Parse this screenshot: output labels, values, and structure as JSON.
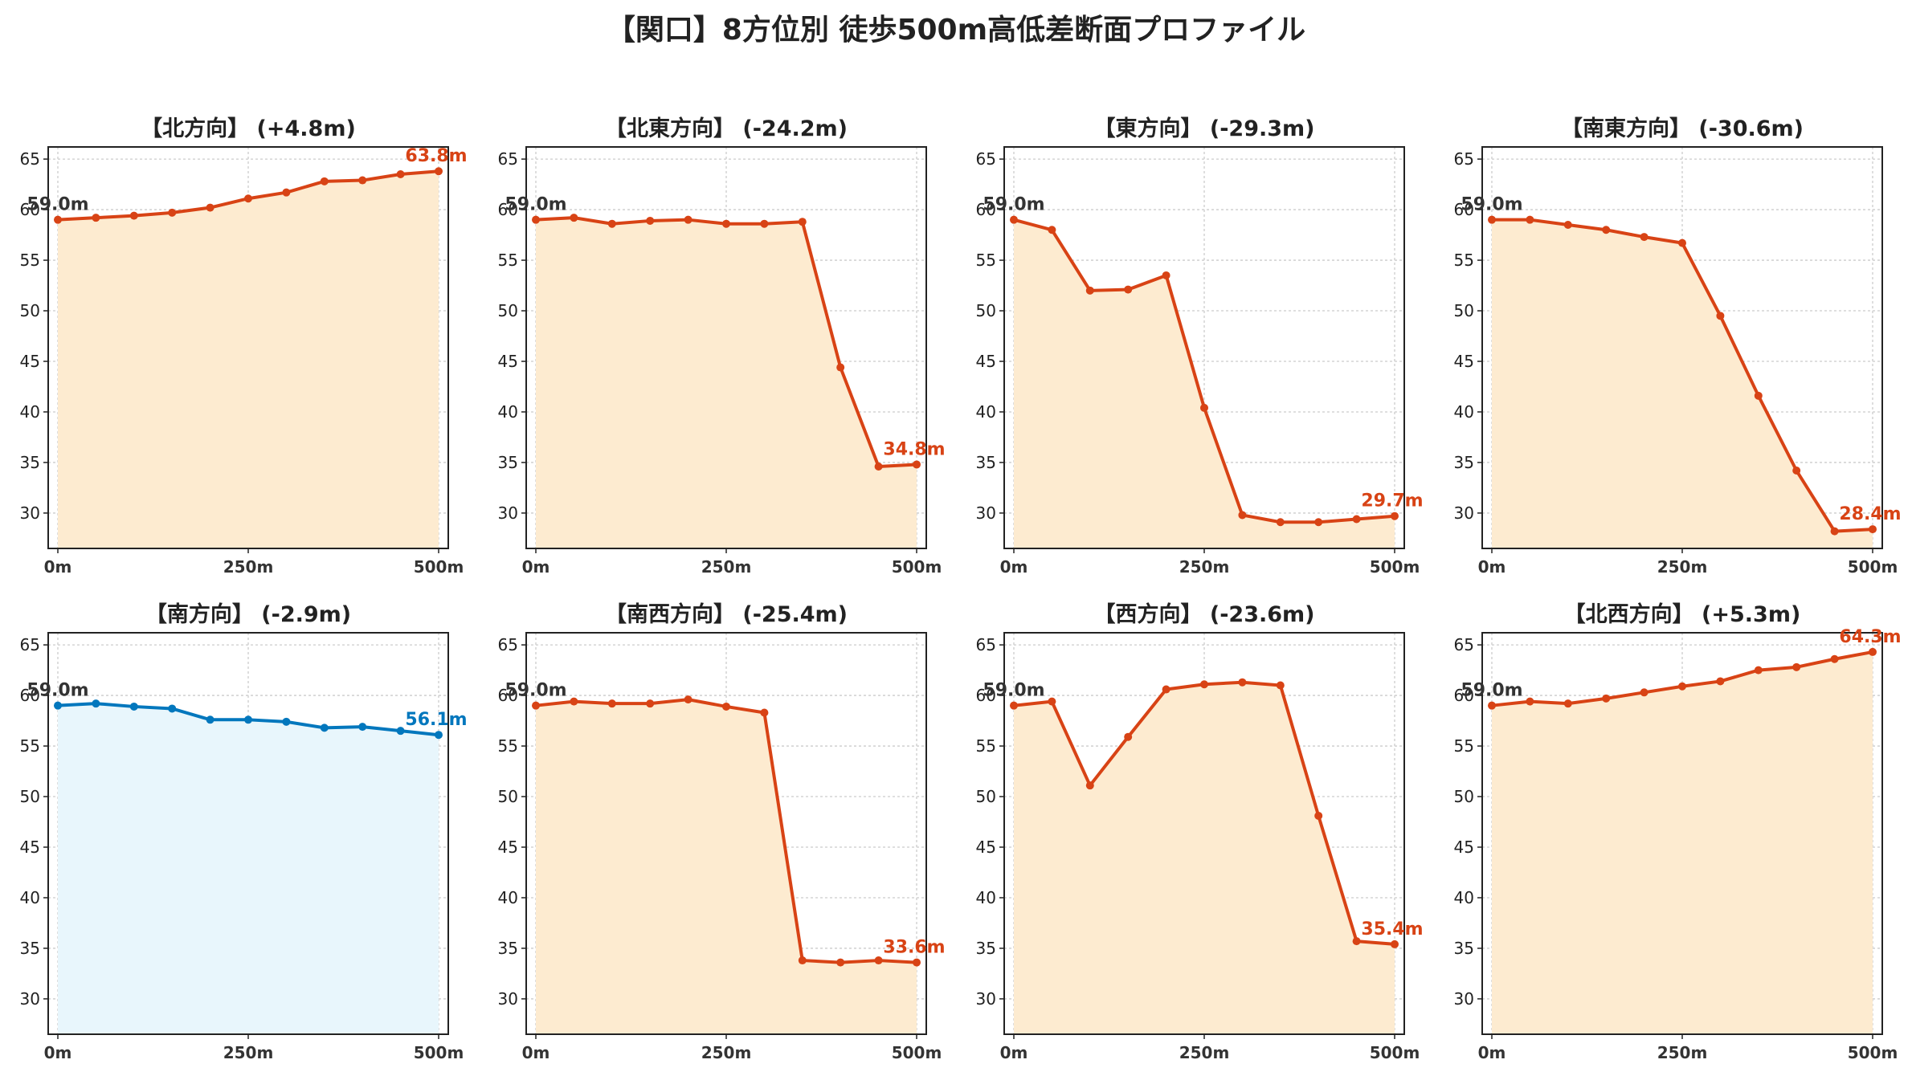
{
  "title": "【関口】8方位別 徒歩500m高低差断面プロファイル",
  "colors": {
    "down_line": "#d84315",
    "down_fill": "#fdebd0",
    "up_line": "#0277bd",
    "up_fill": "#e8f6fc",
    "grid": "#cccccc",
    "start_label": "#333333"
  },
  "chart_data": [
    {
      "type": "area",
      "title": "【北方向】 (+4.8m)",
      "xlabel": "",
      "ylabel": "",
      "x": [
        0,
        50,
        100,
        150,
        200,
        250,
        300,
        350,
        400,
        450,
        500
      ],
      "x_ticks": [
        {
          "value": 0,
          "label": "0m"
        },
        {
          "value": 250,
          "label": "250m"
        },
        {
          "value": 500,
          "label": "500m"
        }
      ],
      "y_ticks": [
        30,
        35,
        40,
        45,
        50,
        55,
        60,
        65
      ],
      "ylim": [
        26.5,
        66.2
      ],
      "values": [
        59.0,
        59.2,
        59.4,
        59.7,
        60.2,
        61.1,
        61.7,
        62.8,
        62.9,
        63.5,
        63.8
      ],
      "start_label": "59.0m",
      "end_label": "63.8m",
      "color_scheme": "orange",
      "grid": true
    },
    {
      "type": "area",
      "title": "【北東方向】 (-24.2m)",
      "xlabel": "",
      "ylabel": "",
      "x": [
        0,
        50,
        100,
        150,
        200,
        250,
        300,
        350,
        400,
        450,
        500
      ],
      "x_ticks": [
        {
          "value": 0,
          "label": "0m"
        },
        {
          "value": 250,
          "label": "250m"
        },
        {
          "value": 500,
          "label": "500m"
        }
      ],
      "y_ticks": [
        30,
        35,
        40,
        45,
        50,
        55,
        60,
        65
      ],
      "ylim": [
        26.5,
        66.2
      ],
      "values": [
        59.0,
        59.2,
        58.6,
        58.9,
        59.0,
        58.6,
        58.6,
        58.8,
        44.4,
        34.6,
        34.8
      ],
      "start_label": "59.0m",
      "end_label": "34.8m",
      "color_scheme": "orange",
      "grid": true
    },
    {
      "type": "area",
      "title": "【東方向】 (-29.3m)",
      "xlabel": "",
      "ylabel": "",
      "x": [
        0,
        50,
        100,
        150,
        200,
        250,
        300,
        350,
        400,
        450,
        500
      ],
      "x_ticks": [
        {
          "value": 0,
          "label": "0m"
        },
        {
          "value": 250,
          "label": "250m"
        },
        {
          "value": 500,
          "label": "500m"
        }
      ],
      "y_ticks": [
        30,
        35,
        40,
        45,
        50,
        55,
        60,
        65
      ],
      "ylim": [
        26.5,
        66.2
      ],
      "values": [
        59.0,
        58.0,
        52.0,
        52.1,
        53.5,
        40.4,
        29.8,
        29.1,
        29.1,
        29.4,
        29.7
      ],
      "start_label": "59.0m",
      "end_label": "29.7m",
      "color_scheme": "orange",
      "grid": true
    },
    {
      "type": "area",
      "title": "【南東方向】 (-30.6m)",
      "xlabel": "",
      "ylabel": "",
      "x": [
        0,
        50,
        100,
        150,
        200,
        250,
        300,
        350,
        400,
        450,
        500
      ],
      "x_ticks": [
        {
          "value": 0,
          "label": "0m"
        },
        {
          "value": 250,
          "label": "250m"
        },
        {
          "value": 500,
          "label": "500m"
        }
      ],
      "y_ticks": [
        30,
        35,
        40,
        45,
        50,
        55,
        60,
        65
      ],
      "ylim": [
        26.5,
        66.2
      ],
      "values": [
        59.0,
        59.0,
        58.5,
        58.0,
        57.3,
        56.7,
        49.5,
        41.6,
        34.2,
        28.2,
        28.4
      ],
      "start_label": "59.0m",
      "end_label": "28.4m",
      "color_scheme": "orange",
      "grid": true
    },
    {
      "type": "area",
      "title": "【南方向】 (-2.9m)",
      "xlabel": "",
      "ylabel": "",
      "x": [
        0,
        50,
        100,
        150,
        200,
        250,
        300,
        350,
        400,
        450,
        500
      ],
      "x_ticks": [
        {
          "value": 0,
          "label": "0m"
        },
        {
          "value": 250,
          "label": "250m"
        },
        {
          "value": 500,
          "label": "500m"
        }
      ],
      "y_ticks": [
        30,
        35,
        40,
        45,
        50,
        55,
        60,
        65
      ],
      "ylim": [
        26.5,
        66.2
      ],
      "values": [
        59.0,
        59.2,
        58.9,
        58.7,
        57.6,
        57.6,
        57.4,
        56.8,
        56.9,
        56.5,
        56.1
      ],
      "start_label": "59.0m",
      "end_label": "56.1m",
      "color_scheme": "blue",
      "grid": true
    },
    {
      "type": "area",
      "title": "【南西方向】 (-25.4m)",
      "xlabel": "",
      "ylabel": "",
      "x": [
        0,
        50,
        100,
        150,
        200,
        250,
        300,
        350,
        400,
        450,
        500
      ],
      "x_ticks": [
        {
          "value": 0,
          "label": "0m"
        },
        {
          "value": 250,
          "label": "250m"
        },
        {
          "value": 500,
          "label": "500m"
        }
      ],
      "y_ticks": [
        30,
        35,
        40,
        45,
        50,
        55,
        60,
        65
      ],
      "ylim": [
        26.5,
        66.2
      ],
      "values": [
        59.0,
        59.4,
        59.2,
        59.2,
        59.6,
        58.9,
        58.3,
        33.8,
        33.6,
        33.8,
        33.6
      ],
      "start_label": "59.0m",
      "end_label": "33.6m",
      "color_scheme": "orange",
      "grid": true
    },
    {
      "type": "area",
      "title": "【西方向】 (-23.6m)",
      "xlabel": "",
      "ylabel": "",
      "x": [
        0,
        50,
        100,
        150,
        200,
        250,
        300,
        350,
        400,
        450,
        500
      ],
      "x_ticks": [
        {
          "value": 0,
          "label": "0m"
        },
        {
          "value": 250,
          "label": "250m"
        },
        {
          "value": 500,
          "label": "500m"
        }
      ],
      "y_ticks": [
        30,
        35,
        40,
        45,
        50,
        55,
        60,
        65
      ],
      "ylim": [
        26.5,
        66.2
      ],
      "values": [
        59.0,
        59.4,
        51.1,
        55.9,
        60.6,
        61.1,
        61.3,
        61.0,
        48.1,
        35.7,
        35.4
      ],
      "start_label": "59.0m",
      "end_label": "35.4m",
      "color_scheme": "orange",
      "grid": true
    },
    {
      "type": "area",
      "title": "【北西方向】 (+5.3m)",
      "xlabel": "",
      "ylabel": "",
      "x": [
        0,
        50,
        100,
        150,
        200,
        250,
        300,
        350,
        400,
        450,
        500
      ],
      "x_ticks": [
        {
          "value": 0,
          "label": "0m"
        },
        {
          "value": 250,
          "label": "250m"
        },
        {
          "value": 500,
          "label": "500m"
        }
      ],
      "y_ticks": [
        30,
        35,
        40,
        45,
        50,
        55,
        60,
        65
      ],
      "ylim": [
        26.5,
        66.2
      ],
      "values": [
        59.0,
        59.4,
        59.2,
        59.7,
        60.3,
        60.9,
        61.4,
        62.5,
        62.8,
        63.6,
        64.3
      ],
      "start_label": "59.0m",
      "end_label": "64.3m",
      "color_scheme": "orange",
      "grid": true
    }
  ]
}
